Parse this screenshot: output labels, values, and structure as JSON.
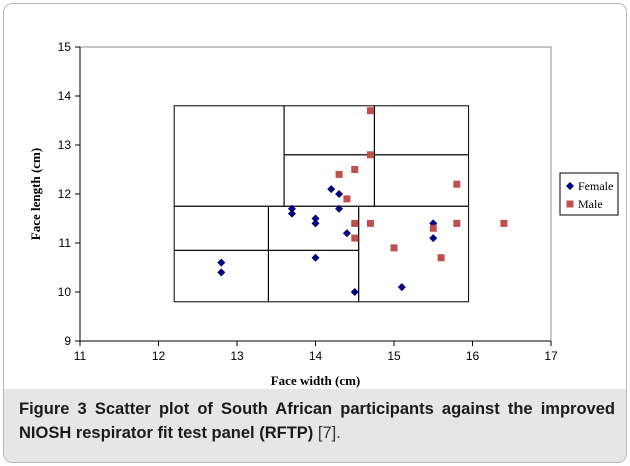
{
  "chart_data": {
    "type": "scatter",
    "xlabel": "Face width (cm)",
    "ylabel": "Face length (cm)",
    "xlim": [
      11,
      17
    ],
    "ylim": [
      9,
      15
    ],
    "xticks": [
      "11",
      "12",
      "13",
      "14",
      "15",
      "16",
      "17"
    ],
    "yticks": [
      "9",
      "10",
      "11",
      "12",
      "13",
      "14",
      "15"
    ],
    "grid": false,
    "legend_position": "right",
    "series": [
      {
        "name": "Female",
        "color": "#000080",
        "marker": "diamond",
        "points": [
          {
            "x": 12.8,
            "y": 10.6
          },
          {
            "x": 12.8,
            "y": 10.4
          },
          {
            "x": 13.7,
            "y": 11.7
          },
          {
            "x": 13.7,
            "y": 11.6
          },
          {
            "x": 14.0,
            "y": 11.5
          },
          {
            "x": 14.0,
            "y": 11.4
          },
          {
            "x": 14.0,
            "y": 10.7
          },
          {
            "x": 14.2,
            "y": 12.1
          },
          {
            "x": 14.3,
            "y": 12.0
          },
          {
            "x": 14.3,
            "y": 11.7
          },
          {
            "x": 14.4,
            "y": 11.2
          },
          {
            "x": 14.5,
            "y": 10.0
          },
          {
            "x": 15.1,
            "y": 10.1
          },
          {
            "x": 15.5,
            "y": 11.4
          },
          {
            "x": 15.5,
            "y": 11.1
          }
        ]
      },
      {
        "name": "Male",
        "color": "#c0504d",
        "marker": "square",
        "points": [
          {
            "x": 14.3,
            "y": 12.4
          },
          {
            "x": 14.4,
            "y": 11.9
          },
          {
            "x": 14.5,
            "y": 12.5
          },
          {
            "x": 14.5,
            "y": 11.4
          },
          {
            "x": 14.5,
            "y": 11.1
          },
          {
            "x": 14.7,
            "y": 13.7
          },
          {
            "x": 14.7,
            "y": 12.8
          },
          {
            "x": 14.7,
            "y": 11.4
          },
          {
            "x": 15.0,
            "y": 10.9
          },
          {
            "x": 15.5,
            "y": 11.3
          },
          {
            "x": 15.6,
            "y": 10.7
          },
          {
            "x": 15.8,
            "y": 12.2
          },
          {
            "x": 15.8,
            "y": 11.4
          },
          {
            "x": 16.4,
            "y": 11.4
          }
        ]
      }
    ],
    "panel_cells": [
      {
        "x0": 12.2,
        "x1": 13.6,
        "y0": 11.75,
        "y1": 13.8
      },
      {
        "x0": 13.6,
        "x1": 14.75,
        "y0": 12.8,
        "y1": 13.8
      },
      {
        "x0": 14.75,
        "x1": 15.95,
        "y0": 12.8,
        "y1": 13.8
      },
      {
        "x0": 13.6,
        "x1": 14.75,
        "y0": 11.75,
        "y1": 12.8
      },
      {
        "x0": 14.75,
        "x1": 15.95,
        "y0": 11.75,
        "y1": 12.8
      },
      {
        "x0": 12.2,
        "x1": 13.4,
        "y0": 10.85,
        "y1": 11.75
      },
      {
        "x0": 12.2,
        "x1": 13.4,
        "y0": 9.8,
        "y1": 10.85
      },
      {
        "x0": 13.4,
        "x1": 14.55,
        "y0": 10.85,
        "y1": 11.75
      },
      {
        "x0": 13.4,
        "x1": 14.55,
        "y0": 9.8,
        "y1": 10.85
      },
      {
        "x0": 14.55,
        "x1": 15.95,
        "y0": 9.8,
        "y1": 11.75
      }
    ]
  },
  "caption": {
    "label": "Figure 3",
    "text": "Scatter plot of South African participants against the improved NIOSH respirator fit test panel (RFTP)",
    "ref": "[7]."
  }
}
